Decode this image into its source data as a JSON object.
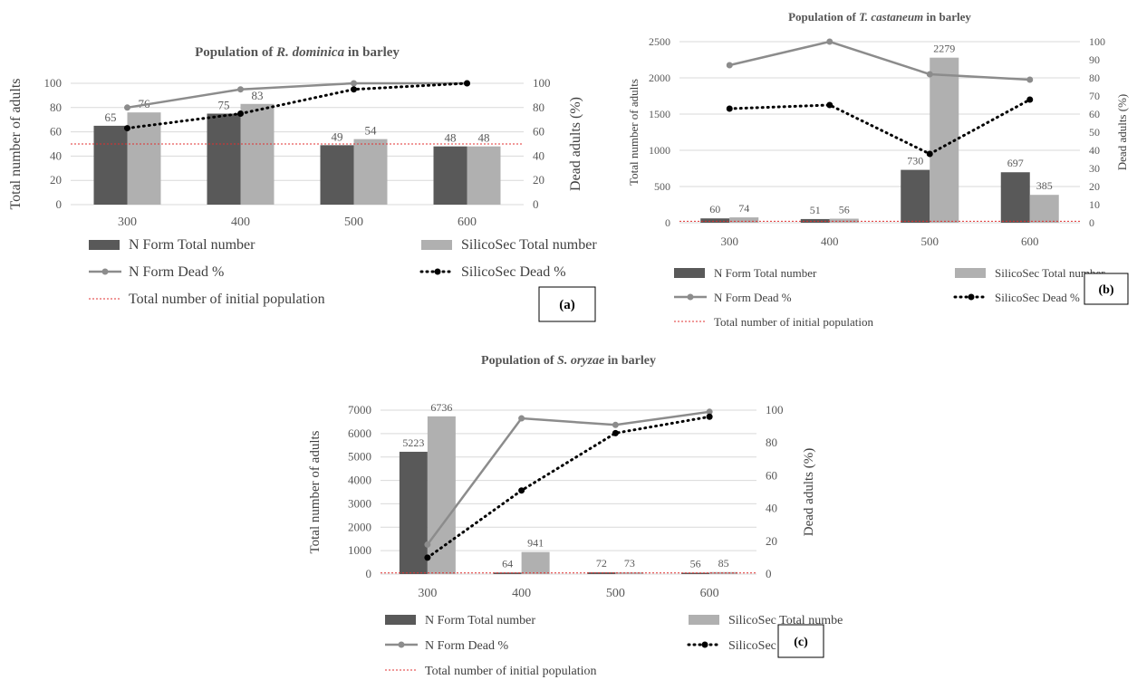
{
  "colors": {
    "n_form_bar": "#595959",
    "silicosec_bar": "#b0b0b0",
    "n_form_line": "#8c8c8c",
    "silicosec_line": "#000000",
    "initial_population_line": "#e03030",
    "grid": "#d9d9d9"
  },
  "chart_data": [
    {
      "type": "bar",
      "panel": "(a)",
      "title_prefix": "Population of ",
      "title_species": "R. dominica",
      "title_suffix": " in barley",
      "xlabel": "",
      "ylabel": "Total number of adults",
      "y2label": "Dead adults (%)",
      "categories": [
        "300",
        "400",
        "500",
        "600"
      ],
      "ylim": [
        0,
        100
      ],
      "y_ticks": [
        0,
        20,
        40,
        60,
        80,
        100
      ],
      "y2lim": [
        0,
        100
      ],
      "y2_ticks": [
        0,
        20,
        40,
        60,
        80,
        100
      ],
      "initial_population": 50,
      "series": [
        {
          "name": "N Form Total number",
          "kind": "bar",
          "values": [
            65,
            75,
            49,
            48
          ],
          "labels": [
            "65",
            "75",
            "49",
            "48"
          ]
        },
        {
          "name": "SilicoSec Total number",
          "kind": "bar",
          "values": [
            76,
            83,
            54,
            48
          ],
          "labels": [
            "76",
            "83",
            "54",
            "48"
          ]
        },
        {
          "name": "N Form Dead %",
          "kind": "line",
          "axis": "secondary",
          "values": [
            80,
            95,
            100,
            100
          ]
        },
        {
          "name": "SilicoSec Dead %",
          "kind": "dotted-line",
          "axis": "secondary",
          "values": [
            63,
            75,
            95,
            100
          ]
        },
        {
          "name": "Total number of initial population",
          "kind": "reference"
        }
      ],
      "legend_placement": "bottom"
    },
    {
      "type": "bar",
      "panel": "(b)",
      "title_prefix": "Population of ",
      "title_species": "T. castaneum",
      "title_suffix": " in barley",
      "xlabel": "",
      "ylabel": "Total number of adults",
      "y2label": "Dead adults (%)",
      "categories": [
        "300",
        "400",
        "500",
        "600"
      ],
      "ylim": [
        0,
        2500
      ],
      "y_ticks": [
        0,
        500,
        1000,
        1500,
        2000,
        2500
      ],
      "y2lim": [
        0,
        100
      ],
      "y2_ticks": [
        0,
        10,
        20,
        30,
        40,
        50,
        60,
        70,
        80,
        90,
        100
      ],
      "initial_population": 20,
      "series": [
        {
          "name": "N Form Total number",
          "kind": "bar",
          "values": [
            60,
            51,
            730,
            697
          ],
          "labels": [
            "60",
            "51",
            "730",
            "697"
          ]
        },
        {
          "name": "SilicoSec Total number",
          "kind": "bar",
          "values": [
            74,
            56,
            2279,
            385
          ],
          "labels": [
            "74",
            "56",
            "2279",
            "385"
          ]
        },
        {
          "name": "N Form Dead %",
          "kind": "line",
          "axis": "secondary",
          "values": [
            87,
            100,
            82,
            79
          ]
        },
        {
          "name": "SilicoSec Dead %",
          "kind": "dotted-line",
          "axis": "secondary",
          "values": [
            63,
            65,
            38,
            68
          ]
        },
        {
          "name": "Total number of initial population",
          "kind": "reference"
        }
      ],
      "legend_placement": "bottom"
    },
    {
      "type": "bar",
      "panel": "(c)",
      "title_prefix": "Population of ",
      "title_species": "S. oryzae",
      "title_suffix": " in barley",
      "xlabel": "",
      "ylabel": "Total number of adults",
      "y2label": "Dead adults (%)",
      "categories": [
        "300",
        "400",
        "500",
        "600"
      ],
      "ylim": [
        0,
        7000
      ],
      "y_ticks": [
        0,
        1000,
        2000,
        3000,
        4000,
        5000,
        6000,
        7000
      ],
      "y2lim": [
        0,
        100
      ],
      "y2_ticks": [
        0,
        20,
        40,
        60,
        80,
        100
      ],
      "initial_population": 50,
      "series": [
        {
          "name": "N Form Total number",
          "kind": "bar",
          "values": [
            5223,
            64,
            72,
            56
          ],
          "labels": [
            "5223",
            "64",
            "72",
            "56"
          ]
        },
        {
          "name": "SilicoSec Total number",
          "kind": "bar",
          "values": [
            6736,
            941,
            73,
            85
          ],
          "labels": [
            "6736",
            "941",
            "73",
            "85"
          ]
        },
        {
          "name": "N Form Dead %",
          "kind": "line",
          "axis": "secondary",
          "values": [
            18,
            95,
            91,
            99
          ]
        },
        {
          "name": "SilicoSec Dead %",
          "kind": "dotted-line",
          "axis": "secondary",
          "values": [
            10,
            51,
            86,
            96
          ]
        },
        {
          "name": "Total number of initial population",
          "kind": "reference"
        }
      ],
      "legend_placement": "bottom"
    }
  ]
}
